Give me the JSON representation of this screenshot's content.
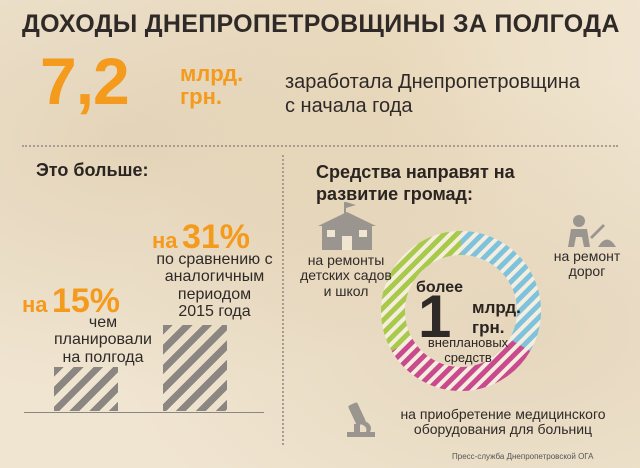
{
  "title": "ДОХОДЫ ДНЕПРОПЕТРОВЩИНЫ ЗА ПОЛГОДА",
  "headline": {
    "amount": "7,2",
    "unit_line1": "млрд.",
    "unit_line2": "грн.",
    "text_line1": "заработала Днепропетровщина",
    "text_line2": "с начала года"
  },
  "left": {
    "heading": "Это больше:",
    "first": {
      "prefix": "на",
      "percent": "15%",
      "line1": "чем",
      "line2": "планировали",
      "line3": "на полгода",
      "value": 15
    },
    "second": {
      "prefix": "на",
      "percent": "31%",
      "line1": "по сравнению с",
      "line2": "аналогичным",
      "line3": "периодом",
      "line4": "2015 года",
      "value": 31
    }
  },
  "right": {
    "heading_line1": "Средства направят на",
    "heading_line2": "развитие громад:",
    "center_more": "более",
    "center_num": "1",
    "center_unit1": "млрд.",
    "center_unit2": "грн.",
    "center_desc1": "внеплановых",
    "center_desc2": "средств",
    "segments": [
      {
        "label_line1": "на ремонты",
        "label_line2": "детских садов",
        "label_line3": "и школ",
        "color": "#a8c94a",
        "icon": "school-icon"
      },
      {
        "label_line1": "на ремонт",
        "label_line2": "дорог",
        "color": "#7fc2dc",
        "icon": "road-worker-icon"
      },
      {
        "label_line1": "на приобретение медицинского",
        "label_line2": "оборудования для больниц",
        "color": "#c94a8d",
        "icon": "microscope-icon"
      }
    ]
  },
  "credit": "Пресс-служба Днепропетровской ОГА",
  "colors": {
    "accent": "#f49a1c",
    "text": "#2f2a27",
    "bar": "#8b8681"
  }
}
